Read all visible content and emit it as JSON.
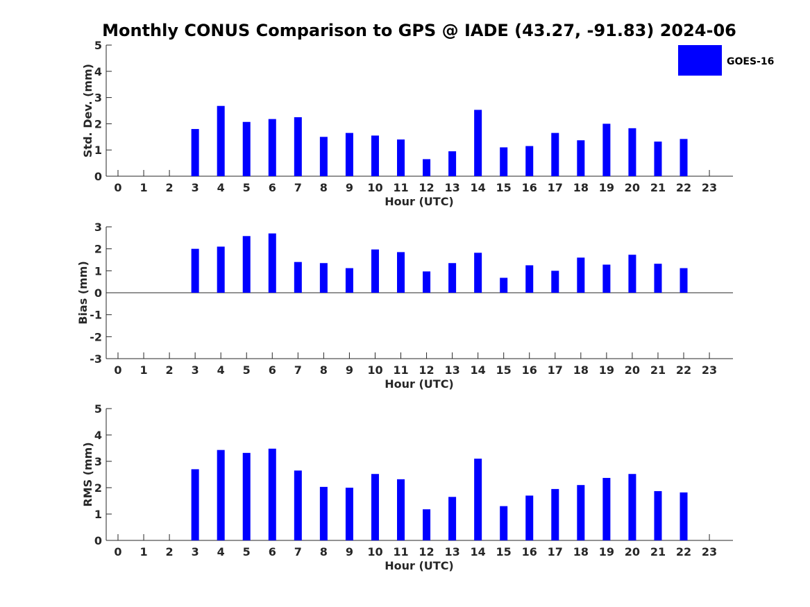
{
  "figure": {
    "title": "Monthly CONUS Comparison to GPS @ IADE (43.27, -91.83) 2024-06"
  },
  "legend": {
    "label": "GOES-16",
    "color": "#0000ff"
  },
  "chart_data": [
    {
      "type": "bar",
      "ylabel": "Std. Dev. (mm)",
      "xlabel": "Hour (UTC)",
      "ylim": [
        0,
        5
      ],
      "yticks": [
        0,
        1,
        2,
        3,
        4,
        5
      ],
      "categories": [
        0,
        1,
        2,
        3,
        4,
        5,
        6,
        7,
        8,
        9,
        10,
        11,
        12,
        13,
        14,
        15,
        16,
        17,
        18,
        19,
        20,
        21,
        22,
        23
      ],
      "series": [
        {
          "name": "GOES-16",
          "values": [
            null,
            null,
            null,
            1.8,
            2.68,
            2.07,
            2.18,
            2.25,
            1.5,
            1.65,
            1.55,
            1.4,
            0.65,
            0.95,
            2.53,
            1.1,
            1.15,
            1.65,
            1.37,
            2.0,
            1.83,
            1.32,
            1.42,
            null
          ]
        }
      ],
      "grid": false
    },
    {
      "type": "bar",
      "ylabel": "Bias (mm)",
      "xlabel": "Hour (UTC)",
      "ylim": [
        -3,
        3
      ],
      "yticks": [
        -3,
        -2,
        -1,
        0,
        1,
        2,
        3
      ],
      "categories": [
        0,
        1,
        2,
        3,
        4,
        5,
        6,
        7,
        8,
        9,
        10,
        11,
        12,
        13,
        14,
        15,
        16,
        17,
        18,
        19,
        20,
        21,
        22,
        23
      ],
      "series": [
        {
          "name": "GOES-16",
          "values": [
            null,
            null,
            null,
            2.0,
            2.1,
            2.58,
            2.7,
            1.4,
            1.35,
            1.12,
            1.97,
            1.85,
            0.97,
            1.35,
            1.82,
            0.68,
            1.25,
            1.0,
            1.6,
            1.28,
            1.73,
            1.32,
            1.12,
            null
          ]
        }
      ],
      "grid": false
    },
    {
      "type": "bar",
      "ylabel": "RMS (mm)",
      "xlabel": "Hour (UTC)",
      "ylim": [
        0,
        5
      ],
      "yticks": [
        0,
        1,
        2,
        3,
        4,
        5
      ],
      "categories": [
        0,
        1,
        2,
        3,
        4,
        5,
        6,
        7,
        8,
        9,
        10,
        11,
        12,
        13,
        14,
        15,
        16,
        17,
        18,
        19,
        20,
        21,
        22,
        23
      ],
      "series": [
        {
          "name": "GOES-16",
          "values": [
            null,
            null,
            null,
            2.7,
            3.43,
            3.32,
            3.48,
            2.65,
            2.03,
            2.0,
            2.52,
            2.32,
            1.18,
            1.65,
            3.1,
            1.3,
            1.7,
            1.95,
            2.1,
            2.37,
            2.52,
            1.87,
            1.82,
            null
          ]
        }
      ],
      "grid": false
    }
  ]
}
